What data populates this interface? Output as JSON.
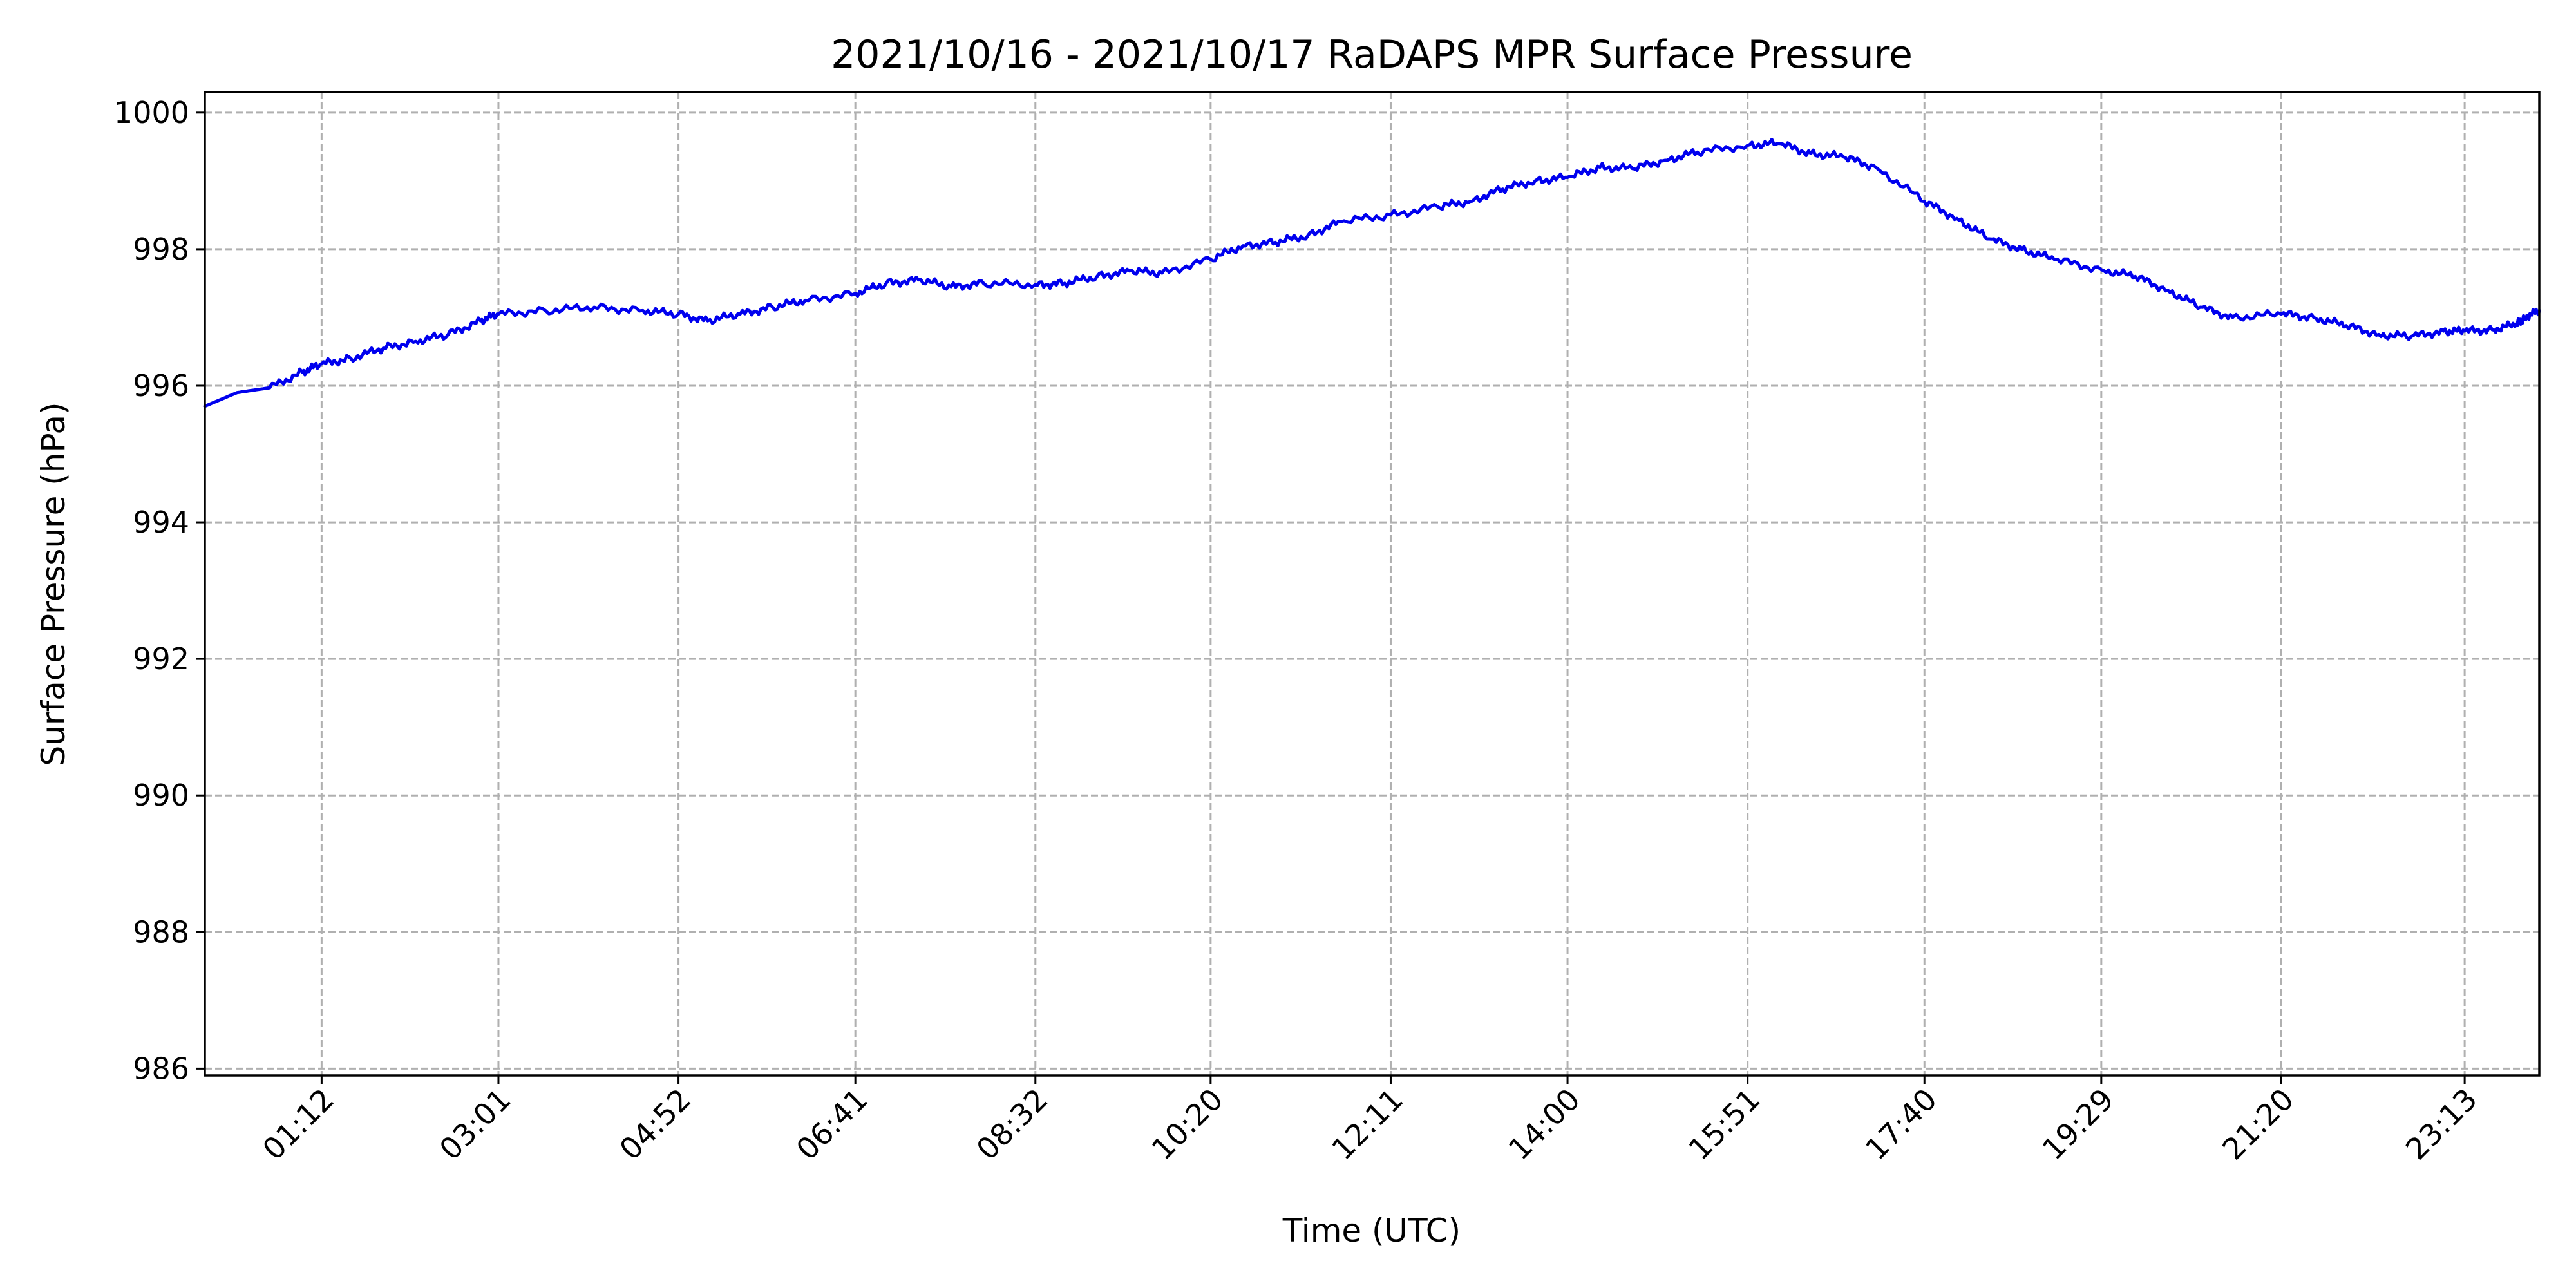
{
  "chart_data": {
    "type": "line",
    "title": "2021/10/16 - 2021/10/17 RaDAPS MPR Surface Pressure",
    "xlabel": "Time (UTC)",
    "ylabel": "Surface Pressure (hPa)",
    "xlim": [
      "00:00",
      "23:59"
    ],
    "ylim": [
      985.9,
      1000.3
    ],
    "grid": true,
    "line_color": "#0000ee",
    "x_ticks": [
      "01:12",
      "03:01",
      "04:52",
      "06:41",
      "08:32",
      "10:20",
      "12:11",
      "14:00",
      "15:51",
      "17:40",
      "19:29",
      "21:20",
      "23:13"
    ],
    "y_ticks": [
      986,
      988,
      990,
      992,
      994,
      996,
      998,
      1000
    ],
    "x": [
      "00:00",
      "00:20",
      "00:40",
      "01:00",
      "01:12",
      "01:30",
      "01:50",
      "02:10",
      "02:30",
      "02:50",
      "03:01",
      "03:30",
      "04:00",
      "04:30",
      "04:52",
      "05:10",
      "05:30",
      "05:50",
      "06:10",
      "06:41",
      "07:00",
      "07:20",
      "07:40",
      "08:00",
      "08:32",
      "08:50",
      "09:10",
      "09:30",
      "09:50",
      "10:20",
      "10:40",
      "11:00",
      "11:20",
      "11:40",
      "12:11",
      "12:40",
      "13:00",
      "13:20",
      "13:40",
      "14:00",
      "14:20",
      "14:40",
      "15:00",
      "15:20",
      "15:51",
      "16:10",
      "16:30",
      "16:50",
      "17:10",
      "17:40",
      "18:00",
      "18:20",
      "18:40",
      "19:00",
      "19:29",
      "19:50",
      "20:10",
      "20:30",
      "20:50",
      "21:20",
      "21:40",
      "22:00",
      "22:20",
      "22:40",
      "23:00",
      "23:13",
      "23:30",
      "23:45",
      "23:50",
      "23:59"
    ],
    "y": [
      995.7,
      995.9,
      995.97,
      996.2,
      996.32,
      996.4,
      996.55,
      996.65,
      996.75,
      996.95,
      997.05,
      997.1,
      997.15,
      997.1,
      997.05,
      996.95,
      997.05,
      997.15,
      997.25,
      997.35,
      997.5,
      997.55,
      997.45,
      997.5,
      997.48,
      997.5,
      997.6,
      997.68,
      997.65,
      997.85,
      998.05,
      998.1,
      998.2,
      998.4,
      998.5,
      998.62,
      998.7,
      998.88,
      999.0,
      999.05,
      999.2,
      999.18,
      999.3,
      999.42,
      999.52,
      999.55,
      999.4,
      999.35,
      999.2,
      998.7,
      998.45,
      998.15,
      998.0,
      997.85,
      997.7,
      997.6,
      997.4,
      997.15,
      997.0,
      997.05,
      997.0,
      996.88,
      996.75,
      996.72,
      996.8,
      996.8,
      996.82,
      996.9,
      997.0,
      997.1
    ]
  }
}
